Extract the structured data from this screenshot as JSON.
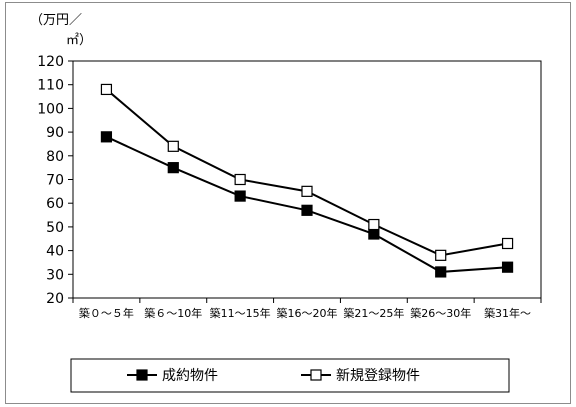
{
  "chart_data": {
    "type": "line",
    "unit_label_line1": "（万円／",
    "unit_label_line2": "㎡）",
    "categories": [
      "築０～５年",
      "築６～10年",
      "築11～15年",
      "築16～20年",
      "築21～25年",
      "築26～30年",
      "築31年～"
    ],
    "ylim": [
      20,
      120
    ],
    "yticks": [
      20,
      30,
      40,
      50,
      60,
      70,
      80,
      90,
      100,
      110,
      120
    ],
    "grid": false,
    "legend_position": "bottom",
    "series": [
      {
        "name": "成約物件",
        "marker": "filled-square",
        "color": "#000000",
        "values": [
          88,
          75,
          63,
          57,
          47,
          31,
          33
        ]
      },
      {
        "name": "新規登録物件",
        "marker": "open-square",
        "color": "#000000",
        "values": [
          108,
          84,
          70,
          65,
          51,
          38,
          43
        ]
      }
    ]
  }
}
